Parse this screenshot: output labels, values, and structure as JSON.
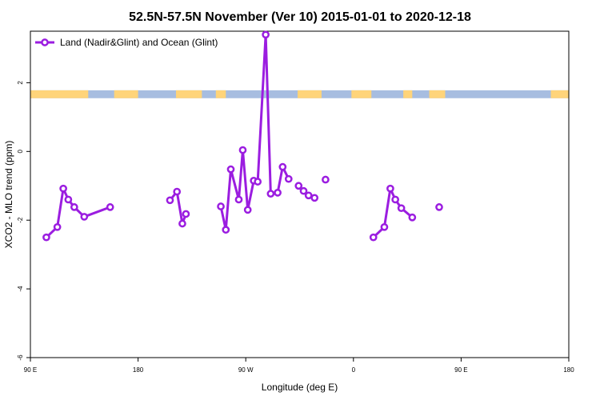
{
  "chart_data": {
    "type": "line",
    "title": "52.5N-57.5N November (Ver 10)   2015-01-01 to 2020-12-18",
    "xlabel": "Longitude (deg E)",
    "ylabel": "XCO2 - MLO trend (ppm)",
    "xlim": [
      -90,
      180
    ],
    "ylim": [
      -6,
      3.5
    ],
    "x_ticks": [
      -90,
      -36,
      18,
      72,
      126,
      180
    ],
    "x_tick_labels": [
      "90 E",
      "180",
      "90 W",
      "0",
      "90 E",
      "180"
    ],
    "y_ticks": [
      -6,
      -4,
      -2,
      0,
      2
    ],
    "y_tick_labels": [
      "-6",
      "-4",
      "-2",
      "0",
      "2"
    ],
    "legend_position": "top-left",
    "series": [
      {
        "name": "Land (Nadir&Glint) and Ocean (Glint)",
        "color": "#9b1de0",
        "segments": [
          [
            [
              -82,
              -2.5
            ],
            [
              -76.5,
              -2.2
            ],
            [
              -73.5,
              -1.08
            ],
            [
              -71,
              -1.4
            ],
            [
              -68,
              -1.62
            ],
            [
              -63,
              -1.9
            ],
            [
              -50,
              -1.62
            ]
          ],
          [
            [
              -20,
              -1.42
            ],
            [
              -16.5,
              -1.17
            ],
            [
              -13.8,
              -2.1
            ],
            [
              -12,
              -1.82
            ]
          ],
          [
            [
              5.5,
              -1.6
            ],
            [
              8,
              -2.28
            ],
            [
              10.5,
              -0.52
            ],
            [
              14.5,
              -1.4
            ],
            [
              16.5,
              0.04
            ],
            [
              19,
              -1.7
            ],
            [
              22,
              -0.85
            ],
            [
              24,
              -0.88
            ],
            [
              28,
              3.4
            ],
            [
              30.5,
              -1.23
            ],
            [
              34,
              -1.2
            ],
            [
              36.5,
              -0.45
            ],
            [
              39.5,
              -0.8
            ]
          ],
          [
            [
              44.5,
              -1.0
            ],
            [
              47,
              -1.15
            ],
            [
              49.5,
              -1.28
            ],
            [
              52.5,
              -1.35
            ]
          ],
          [
            [
              58,
              -0.82
            ]
          ],
          [
            [
              82,
              -2.5
            ],
            [
              87.5,
              -2.2
            ],
            [
              90.5,
              -1.08
            ],
            [
              93,
              -1.4
            ],
            [
              96,
              -1.65
            ],
            [
              101.5,
              -1.92
            ]
          ],
          [
            [
              115,
              -1.62
            ]
          ]
        ]
      }
    ],
    "land_ocean_band": {
      "y_range": [
        1.55,
        1.78
      ],
      "land_color": "#ffd47a",
      "ocean_color": "#a7bde0",
      "land_ranges": [
        [
          -90,
          -61
        ],
        [
          -48,
          -36
        ],
        [
          -17,
          -4
        ],
        [
          3,
          8
        ],
        [
          44,
          56
        ],
        [
          71,
          81
        ],
        [
          97,
          101.5
        ],
        [
          110,
          118
        ],
        [
          171,
          180
        ]
      ]
    }
  }
}
